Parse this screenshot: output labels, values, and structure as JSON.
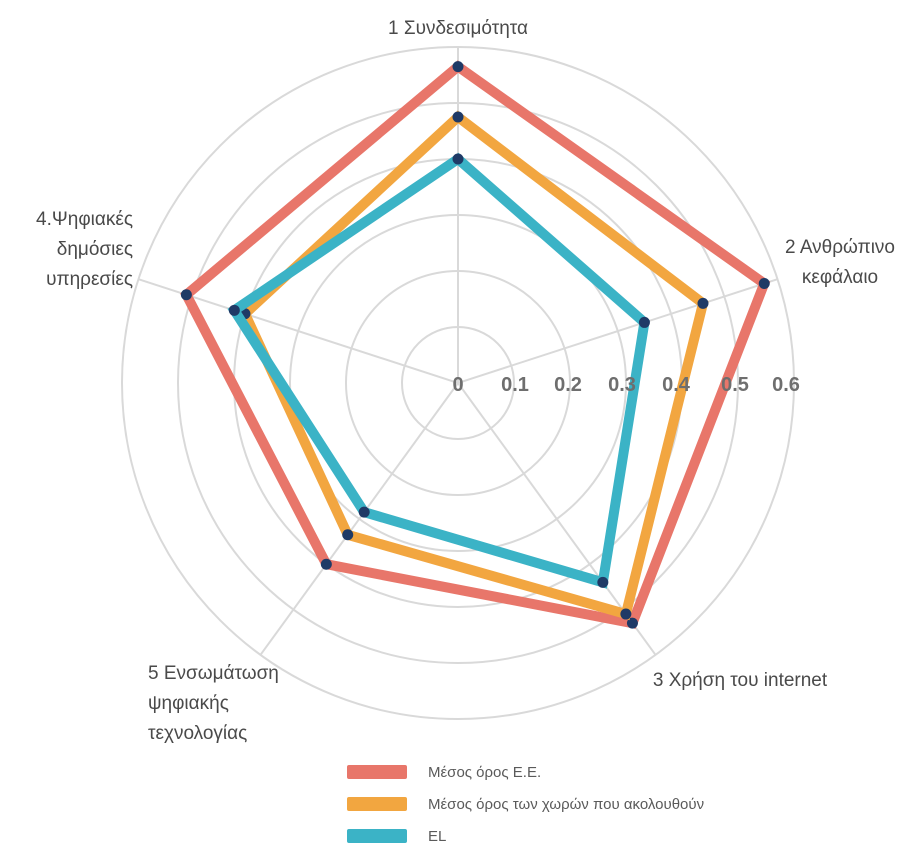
{
  "chart_data": {
    "type": "radar",
    "title": "",
    "axes": [
      {
        "label": [
          "1 Συνδεσιμότητα"
        ]
      },
      {
        "label": [
          "2 Ανθρώπινο",
          "κεφάλαιο"
        ]
      },
      {
        "label": [
          "3 Χρήση του internet"
        ]
      },
      {
        "label": [
          "5  Ενσωμάτωση",
          "ψηφιακής",
          "τεχνολογίας"
        ]
      },
      {
        "label": [
          "4.Ψηφιακές",
          "δημόσιες",
          "υπηρεσίες"
        ]
      }
    ],
    "rlim": [
      0,
      0.6
    ],
    "ticks": [
      "0",
      "0.1",
      "0.2",
      "0.3",
      "0.4",
      "0.5",
      "0.6"
    ],
    "grid": true,
    "legend_position": "bottom",
    "series": [
      {
        "name": "Μέσος όρος Ε.Ε.",
        "color": "#e8766a",
        "values": [
          0.565,
          0.575,
          0.53,
          0.4,
          0.51
        ]
      },
      {
        "name": "Μέσος όρος των χωρών που ακολουθούν",
        "color": "#f2a640",
        "values": [
          0.475,
          0.46,
          0.51,
          0.335,
          0.4
        ]
      },
      {
        "name": "EL",
        "color": "#3bb3c6",
        "values": [
          0.4,
          0.35,
          0.44,
          0.285,
          0.42
        ]
      }
    ]
  }
}
